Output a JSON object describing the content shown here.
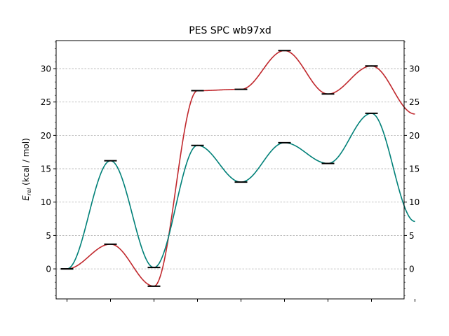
{
  "chart_data": {
    "type": "line",
    "title": "PES SPC wb97xd",
    "ylabel": {
      "symbol": "E",
      "subscript": "rel",
      "unit": " (kcal / mol)"
    },
    "x": [
      0,
      1,
      2,
      3,
      4,
      5,
      6,
      7
    ],
    "xlim": [
      -0.25,
      7.75
    ],
    "ylim": [
      -4.5,
      34.2
    ],
    "yticks": [
      0,
      5,
      10,
      15,
      20,
      25,
      30
    ],
    "grid": "horizontal-dashed",
    "series": [
      {
        "color": "#c0282d",
        "values": [
          0.0,
          3.7,
          -2.6,
          26.7,
          26.9,
          32.7,
          26.2,
          30.4
        ],
        "end_value": 23.2
      },
      {
        "color": "#008078",
        "values": [
          0.0,
          16.2,
          0.2,
          18.5,
          13.0,
          18.9,
          15.8,
          23.3
        ],
        "end_value": 7.1
      }
    ]
  }
}
